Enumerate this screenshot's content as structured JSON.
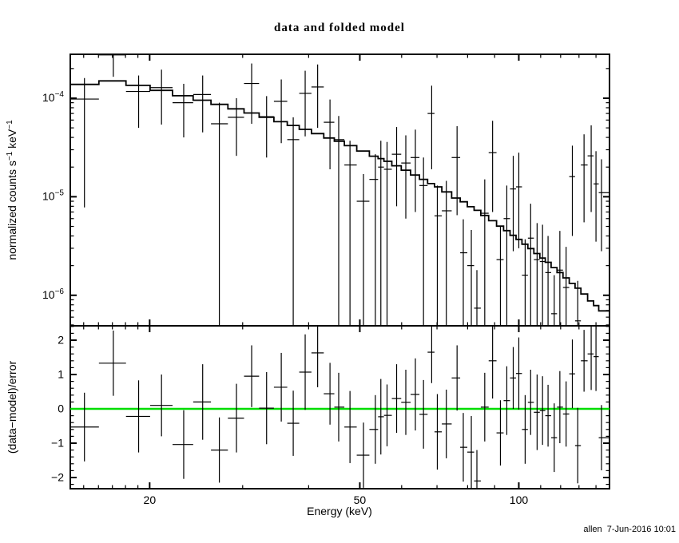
{
  "title": "data and folded model",
  "footer_timestamp": "allen  7-Jun-2016 10:01",
  "colors": {
    "foreground": "#000000",
    "background": "#ffffff",
    "zero_line": "#00dd00"
  },
  "chart_data": {
    "type": "scatter",
    "subtype": "xspec-spectrum-with-residuals",
    "title": "data and folded model",
    "legend": "none",
    "grid": false,
    "x_axis": {
      "label": "Energy (keV)",
      "scale": "log",
      "range": [
        14.15,
        148.5
      ],
      "major_ticks": [
        20,
        50,
        100
      ],
      "major_tick_labels": [
        "20",
        "50",
        "100"
      ],
      "minor_ticks": [
        15,
        16,
        17,
        18,
        19,
        30,
        40,
        60,
        70,
        80,
        90,
        110,
        120,
        130,
        140
      ]
    },
    "top_panel": {
      "y_label_parts": [
        {
          "t": "normalized counts s"
        },
        {
          "t": "−1",
          "sup": true
        },
        {
          "t": " keV"
        },
        {
          "t": "−1",
          "sup": true
        }
      ],
      "y_scale": "log",
      "y_range": [
        4.9e-07,
        0.000279
      ],
      "y_major_ticks": [
        0.0001,
        1e-05,
        1e-06
      ],
      "y_major_tick_labels": [
        {
          "base": "10",
          "exp": "−4"
        },
        {
          "base": "10",
          "exp": "−5"
        },
        {
          "base": "10",
          "exp": "−6"
        }
      ],
      "model": {
        "name": "folded model",
        "bin_edges": [
          14.15,
          16.03,
          18.04,
          20.04,
          22.1,
          24.18,
          26.13,
          28.13,
          30.18,
          32.23,
          34.38,
          36.44,
          38.39,
          40.49,
          42.73,
          44.74,
          46.74,
          49.33,
          52.13,
          54.15,
          55.54,
          57.49,
          59.89,
          62.39,
          64.84,
          67.19,
          69.24,
          71.49,
          74.63,
          77.44,
          79.89,
          82.29,
          84.74,
          87.69,
          90.74,
          93.59,
          96.24,
          98.79,
          101.39,
          104.04,
          106.79,
          109.59,
          112.24,
          115.14,
          118.14,
          121.24,
          124.59,
          127.79,
          131.09,
          134.98,
          138.54,
          141.69,
          148.5
        ],
        "values": [
          0.000138,
          0.00015,
          0.000135,
          0.00012,
          0.000106,
          9.54e-05,
          8.66e-05,
          7.8e-05,
          7.08e-05,
          6.41e-05,
          5.78e-05,
          5.29e-05,
          4.83e-05,
          4.37e-05,
          3.95e-05,
          3.66e-05,
          3.3e-05,
          2.91e-05,
          2.58e-05,
          2.44e-05,
          2.29e-05,
          2.06e-05,
          1.86e-05,
          1.66e-05,
          1.5e-05,
          1.36e-05,
          1.26e-05,
          1.12e-05,
          9.7e-06,
          8.89e-06,
          7.91e-06,
          7.28e-06,
          6.46e-06,
          5.71e-06,
          5.03e-06,
          4.53e-06,
          4.06e-06,
          3.69e-06,
          3.3e-06,
          2.98e-06,
          2.65e-06,
          2.39e-06,
          2.16e-06,
          1.91e-06,
          1.7e-06,
          1.5e-06,
          1.32e-06,
          1.18e-06,
          1.03e-06,
          8.76e-07,
          7.86e-07,
          6.94e-07
        ]
      },
      "data_points": {
        "columns": [
          "energy",
          "e_lo",
          "e_hi",
          "value",
          "err_lo_null_means_clipped_to_bottom",
          "err_hi_null_means_clipped_to_top"
        ],
        "rows": [
          [
            15.05,
            14.15,
            16.03,
            9.8e-05,
            7.8e-06,
            0.00016
          ],
          [
            17.07,
            16.03,
            18.04,
            0.000275,
            0.000165,
            null
          ],
          [
            19.06,
            18.04,
            20.04,
            0.000117,
            5e-05,
            0.00017
          ],
          [
            21.06,
            20.04,
            22.1,
            0.000128,
            5.4e-05,
            0.000195
          ],
          [
            23.2,
            22.1,
            24.18,
            9e-05,
            4e-05,
            0.00014
          ],
          [
            25.2,
            24.18,
            26.13,
            0.000109,
            4.5e-05,
            0.00017
          ],
          [
            27.1,
            26.13,
            28.13,
            5.5e-05,
            null,
            9e-05
          ],
          [
            29.2,
            28.13,
            30.18,
            6.4e-05,
            2.6e-05,
            0.0001
          ],
          [
            31.2,
            30.18,
            32.23,
            0.000141,
            5.5e-05,
            0.000225
          ],
          [
            33.3,
            32.23,
            34.38,
            6.5e-05,
            2.5e-05,
            0.000105
          ],
          [
            35.5,
            34.38,
            36.44,
            9.3e-05,
            3.5e-05,
            0.000155
          ],
          [
            37.4,
            36.44,
            38.39,
            3.8e-05,
            null,
            6.4e-05
          ],
          [
            39.4,
            38.39,
            40.49,
            0.000112,
            4.1e-05,
            0.00019
          ],
          [
            41.6,
            40.49,
            42.73,
            0.00013,
            5e-05,
            0.00022
          ],
          [
            43.9,
            42.73,
            44.74,
            5.7e-05,
            1.9e-05,
            9.7e-05
          ],
          [
            45.6,
            44.74,
            46.74,
            3.8e-05,
            null,
            6.6e-05
          ],
          [
            47.9,
            46.74,
            49.33,
            2.1e-05,
            null,
            3.7e-05
          ],
          [
            50.8,
            49.33,
            52.13,
            9e-06,
            null,
            1.7e-05
          ],
          [
            53.5,
            52.13,
            54.15,
            1.5e-05,
            null,
            2.7e-05
          ],
          [
            54.8,
            54.15,
            55.54,
            2e-05,
            null,
            3.7e-05
          ],
          [
            56.3,
            55.54,
            57.49,
            1.9e-05,
            null,
            3.6e-05
          ],
          [
            58.7,
            57.49,
            59.89,
            2.7e-05,
            8e-06,
            5.1e-05
          ],
          [
            61.1,
            59.89,
            62.39,
            2.2e-05,
            6e-06,
            4.2e-05
          ],
          [
            63.7,
            62.39,
            64.84,
            2.5e-05,
            7e-06,
            4.8e-05
          ],
          [
            66.0,
            64.84,
            67.19,
            1.3e-05,
            null,
            2.5e-05
          ],
          [
            68.4,
            67.19,
            69.24,
            7e-05,
            1.9e-05,
            0.000134
          ],
          [
            70.1,
            69.24,
            71.49,
            6.4e-06,
            null,
            1.3e-05
          ],
          [
            72.9,
            71.49,
            74.63,
            7.2e-06,
            null,
            1.45e-05
          ],
          [
            76.4,
            74.63,
            77.44,
            2.5e-05,
            6.5e-06,
            5.2e-05
          ],
          [
            78.5,
            77.44,
            79.89,
            2.7e-06,
            null,
            5.9e-06
          ],
          [
            81.3,
            79.89,
            82.29,
            2e-06,
            null,
            4.6e-06
          ],
          [
            83.3,
            82.29,
            84.74,
            7.4e-07,
            null,
            1.8e-06
          ],
          [
            86.2,
            84.74,
            87.69,
            6.8e-06,
            null,
            1.5e-05
          ],
          [
            89.2,
            87.69,
            90.74,
            2.8e-05,
            7e-06,
            5.9e-05
          ],
          [
            92.3,
            90.74,
            93.59,
            2.3e-06,
            null,
            5e-06
          ],
          [
            94.9,
            93.59,
            96.24,
            6e-06,
            null,
            1.3e-05
          ],
          [
            97.6,
            96.24,
            98.79,
            1.2e-05,
            2.8e-06,
            2.6e-05
          ],
          [
            100.0,
            98.79,
            101.39,
            1.26e-05,
            3e-06,
            2.8e-05
          ],
          [
            102.8,
            101.39,
            104.04,
            1.6e-06,
            null,
            3.7e-06
          ],
          [
            105.3,
            104.04,
            106.79,
            3.8e-06,
            null,
            8.5e-06
          ],
          [
            108.3,
            106.79,
            109.59,
            2.3e-06,
            null,
            5.4e-06
          ],
          [
            110.9,
            109.59,
            112.24,
            2.2e-06,
            null,
            5.2e-06
          ],
          [
            113.6,
            112.24,
            115.14,
            1.7e-06,
            null,
            4e-06
          ],
          [
            116.7,
            115.14,
            118.14,
            6.5e-07,
            null,
            1.6e-06
          ],
          [
            119.6,
            118.14,
            121.24,
            1.8e-06,
            null,
            4.5e-06
          ],
          [
            122.9,
            121.24,
            124.59,
            1.2e-06,
            null,
            3.1e-06
          ],
          [
            126.3,
            124.59,
            127.79,
            1.6e-05,
            4e-06,
            3.3e-05
          ],
          [
            129.3,
            127.79,
            131.09,
            5.5e-07,
            null,
            1.4e-06
          ],
          [
            132.9,
            131.09,
            134.98,
            2.1e-05,
            5.5e-06,
            4.3e-05
          ],
          [
            137.1,
            134.98,
            138.54,
            2.6e-05,
            7e-06,
            5.3e-05
          ],
          [
            140.0,
            138.54,
            141.69,
            1.35e-05,
            3.5e-06,
            2.9e-05
          ],
          [
            143.4,
            141.69,
            148.5,
            1.1e-05,
            2.8e-06,
            2.4e-05
          ]
        ]
      }
    },
    "bottom_panel": {
      "y_label": "(data−model)/error",
      "y_scale": "linear",
      "y_range": [
        -2.326,
        2.419
      ],
      "y_major_ticks": [
        -2,
        -1,
        0,
        1,
        2
      ],
      "y_major_tick_labels": [
        "−2",
        "−1",
        "0",
        "1",
        "2"
      ],
      "y_minor_tick_step": 0.2,
      "zero_line": {
        "y": 0,
        "color": "#00dd00"
      },
      "points": {
        "columns": [
          "energy",
          "e_lo",
          "e_hi",
          "residual",
          "error"
        ],
        "rows": [
          [
            15.05,
            14.15,
            16.03,
            -0.53,
            1.0
          ],
          [
            17.07,
            16.03,
            18.04,
            1.33,
            0.95
          ],
          [
            19.06,
            18.04,
            20.04,
            -0.22,
            1.05
          ],
          [
            21.06,
            20.04,
            22.1,
            0.1,
            0.9
          ],
          [
            23.2,
            22.1,
            24.18,
            -1.04,
            1.0
          ],
          [
            25.2,
            24.18,
            26.13,
            0.2,
            1.1
          ],
          [
            27.1,
            26.13,
            28.13,
            -1.2,
            0.95
          ],
          [
            29.2,
            28.13,
            30.18,
            -0.27,
            1.0
          ],
          [
            31.2,
            30.18,
            32.23,
            0.95,
            0.9
          ],
          [
            33.3,
            32.23,
            34.38,
            0.02,
            1.05
          ],
          [
            35.5,
            34.38,
            36.44,
            0.63,
            1.0
          ],
          [
            37.4,
            36.44,
            38.39,
            -0.42,
            0.95
          ],
          [
            39.4,
            38.39,
            40.49,
            1.07,
            1.1
          ],
          [
            41.6,
            40.49,
            42.73,
            1.63,
            1.0
          ],
          [
            43.9,
            42.73,
            44.74,
            0.44,
            0.9
          ],
          [
            45.6,
            44.74,
            46.74,
            0.05,
            1.0
          ],
          [
            47.9,
            46.74,
            49.33,
            -0.53,
            1.05
          ],
          [
            50.8,
            49.33,
            52.13,
            -1.35,
            0.95
          ],
          [
            53.5,
            52.13,
            54.15,
            -0.6,
            1.0
          ],
          [
            54.8,
            54.15,
            55.54,
            -0.23,
            1.1
          ],
          [
            56.3,
            55.54,
            57.49,
            -0.19,
            0.9
          ],
          [
            58.7,
            57.49,
            59.89,
            0.3,
            1.0
          ],
          [
            61.1,
            59.89,
            62.39,
            0.19,
            0.95
          ],
          [
            63.7,
            62.39,
            64.84,
            0.42,
            1.05
          ],
          [
            66.0,
            64.84,
            67.19,
            -0.16,
            1.0
          ],
          [
            68.4,
            67.19,
            69.24,
            1.65,
            0.9
          ],
          [
            70.1,
            69.24,
            71.49,
            -0.67,
            1.1
          ],
          [
            72.9,
            71.49,
            74.63,
            -0.44,
            1.0
          ],
          [
            76.4,
            74.63,
            77.44,
            0.9,
            0.95
          ],
          [
            78.5,
            77.44,
            79.89,
            -1.12,
            1.0
          ],
          [
            81.3,
            79.89,
            82.29,
            -1.26,
            1.05
          ],
          [
            83.3,
            82.29,
            84.74,
            -2.1,
            0.9
          ],
          [
            86.2,
            84.74,
            87.69,
            0.05,
            1.0
          ],
          [
            89.2,
            87.69,
            90.74,
            1.4,
            1.1
          ],
          [
            92.3,
            90.74,
            93.59,
            -0.7,
            0.95
          ],
          [
            94.9,
            93.59,
            96.24,
            0.24,
            1.0
          ],
          [
            97.6,
            96.24,
            98.79,
            0.9,
            0.9
          ],
          [
            100.0,
            98.79,
            101.39,
            1.03,
            1.05
          ],
          [
            102.8,
            101.39,
            104.04,
            -0.6,
            1.0
          ],
          [
            105.3,
            104.04,
            106.79,
            0.19,
            0.95
          ],
          [
            108.3,
            106.79,
            109.59,
            -0.1,
            1.1
          ],
          [
            110.9,
            109.59,
            112.24,
            -0.05,
            1.0
          ],
          [
            113.6,
            112.24,
            115.14,
            -0.2,
            0.9
          ],
          [
            116.7,
            115.14,
            118.14,
            -0.84,
            1.0
          ],
          [
            119.6,
            118.14,
            121.24,
            0.05,
            1.05
          ],
          [
            122.9,
            121.24,
            124.59,
            -0.15,
            0.95
          ],
          [
            126.3,
            124.59,
            127.79,
            1.02,
            1.0
          ],
          [
            129.3,
            127.79,
            131.09,
            -1.07,
            1.1
          ],
          [
            132.9,
            131.09,
            134.98,
            1.4,
            0.9
          ],
          [
            137.1,
            134.98,
            138.54,
            1.6,
            1.05
          ],
          [
            140.0,
            138.54,
            141.69,
            1.52,
            1.0
          ],
          [
            143.4,
            141.69,
            148.5,
            -0.84,
            0.95
          ]
        ]
      }
    }
  }
}
